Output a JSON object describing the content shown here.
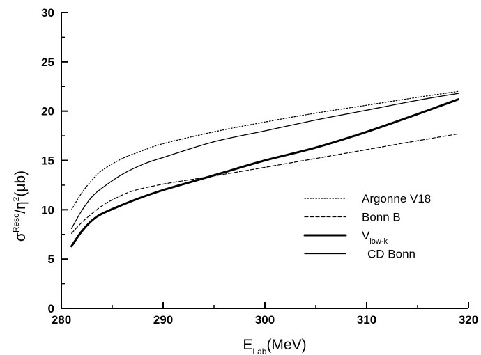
{
  "chart_data": {
    "type": "line",
    "xlabel": {
      "main": "E",
      "sub": "Lab",
      "unit": "(MeV)"
    },
    "ylabel": {
      "main": "σ",
      "sup1": "Resc",
      "mid": "/η",
      "sup2": "2",
      "unit": "(μb)"
    },
    "xlim": [
      280,
      320
    ],
    "ylim": [
      0,
      30
    ],
    "xticks": [
      280,
      290,
      300,
      310,
      320
    ],
    "yticks": [
      0,
      5,
      10,
      15,
      20,
      25,
      30
    ],
    "grid": false,
    "legend_position": "right-center",
    "series": [
      {
        "name": "Argonne V18",
        "style": "dotted",
        "x": [
          281,
          282,
          283,
          284,
          286,
          288,
          290,
          295,
          300,
          305,
          310,
          315,
          319
        ],
        "y": [
          10.0,
          11.7,
          13.0,
          14.0,
          15.2,
          16.0,
          16.7,
          17.9,
          18.9,
          19.8,
          20.6,
          21.4,
          22.0
        ]
      },
      {
        "name": "Bonn B",
        "style": "dashed",
        "x": [
          281,
          282,
          283,
          284,
          285,
          287,
          290,
          293,
          296,
          300,
          305,
          310,
          315,
          319
        ],
        "y": [
          7.6,
          8.7,
          9.6,
          10.4,
          11.0,
          11.9,
          12.6,
          13.1,
          13.6,
          14.3,
          15.2,
          16.1,
          17.0,
          17.7
        ]
      },
      {
        "name": "V",
        "name_sub": "low-k",
        "style": "thick",
        "x": [
          281,
          282,
          283,
          284,
          286,
          288,
          290,
          293,
          296,
          300,
          305,
          310,
          315,
          319
        ],
        "y": [
          6.3,
          7.8,
          8.9,
          9.6,
          10.5,
          11.3,
          12.0,
          12.9,
          13.8,
          15.0,
          16.3,
          17.9,
          19.7,
          21.2
        ]
      },
      {
        "name": "CD Bonn",
        "style": "thin",
        "x": [
          281,
          282,
          283,
          284,
          286,
          288,
          290,
          295,
          300,
          305,
          310,
          315,
          319
        ],
        "y": [
          8.1,
          9.9,
          11.3,
          12.2,
          13.6,
          14.6,
          15.3,
          16.9,
          18.0,
          19.1,
          20.1,
          21.1,
          21.8
        ]
      }
    ]
  }
}
